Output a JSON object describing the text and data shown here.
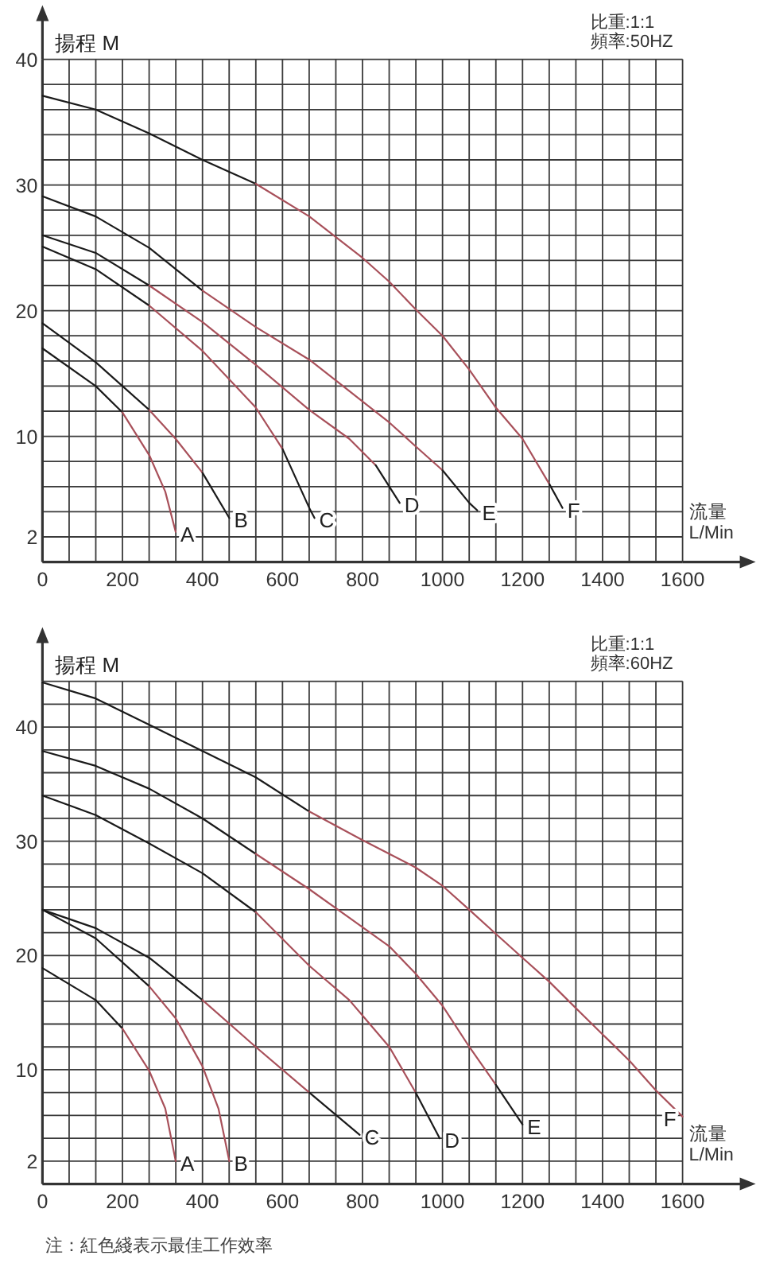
{
  "chart_data": [
    {
      "type": "line",
      "xlabel": "流量\nL/Min",
      "ylabel": "揚程 M",
      "annotations": [
        "比重:1:1",
        "頻率:50HZ"
      ],
      "grid": true,
      "xlim": [
        0,
        1600
      ],
      "ylim": [
        0,
        40
      ],
      "xticks": [
        0,
        {
          "value": 66.667,
          "label": null
        },
        {
          "value": 133.333,
          "label": null
        },
        200,
        {
          "value": 266.667,
          "label": null
        },
        {
          "value": 333.333,
          "label": null
        },
        400,
        {
          "value": 466.667,
          "label": null
        },
        {
          "value": 533.333,
          "label": null
        },
        600,
        {
          "value": 666.667,
          "label": null
        },
        {
          "value": 733.333,
          "label": null
        },
        800,
        {
          "value": 866.667,
          "label": null
        },
        {
          "value": 933.333,
          "label": null
        },
        1000,
        {
          "value": 1066.667,
          "label": null
        },
        {
          "value": 1133.333,
          "label": null
        },
        1200,
        {
          "value": 1266.667,
          "label": null
        },
        {
          "value": 1333.333,
          "label": null
        },
        1400,
        {
          "value": 1466.667,
          "label": null
        },
        {
          "value": 1533.333,
          "label": null
        },
        1600
      ],
      "yticks": [
        {
          "value": 0,
          "label": null
        },
        2,
        {
          "value": 4,
          "label": null
        },
        {
          "value": 6,
          "label": null
        },
        {
          "value": 8,
          "label": null
        },
        10,
        {
          "value": 12,
          "label": null
        },
        {
          "value": 14,
          "label": null
        },
        {
          "value": 16,
          "label": null
        },
        {
          "value": 18,
          "label": null
        },
        20,
        {
          "value": 22,
          "label": null
        },
        {
          "value": 24,
          "label": null
        },
        {
          "value": 26,
          "label": null
        },
        {
          "value": 28,
          "label": null
        },
        30,
        {
          "value": 32,
          "label": null
        },
        {
          "value": 34,
          "label": null
        },
        {
          "value": 36,
          "label": null
        },
        {
          "value": 38,
          "label": null
        },
        40
      ],
      "series": [
        {
          "color": "#1a1a1a",
          "x": [
            0,
            133,
            200
          ],
          "values": [
            17.0,
            14.0,
            11.9
          ]
        },
        {
          "name": "A",
          "color": "#a8505a",
          "x": [
            200,
            267,
            307,
            333
          ],
          "values": [
            11.9,
            8.5,
            5.6,
            2.4
          ]
        },
        {
          "color": "#1a1a1a",
          "x": [
            0,
            133,
            267
          ],
          "values": [
            19.0,
            15.9,
            12.1
          ]
        },
        {
          "color": "#a8505a",
          "x": [
            267,
            333,
            400
          ],
          "values": [
            12.1,
            9.8,
            7.1
          ]
        },
        {
          "name": "B",
          "color": "#1a1a1a",
          "x": [
            400,
            467
          ],
          "values": [
            7.1,
            3.5
          ]
        },
        {
          "color": "#1a1a1a",
          "x": [
            0,
            133,
            267
          ],
          "values": [
            25.1,
            23.3,
            20.4
          ]
        },
        {
          "color": "#a8505a",
          "x": [
            267,
            400,
            533,
            600
          ],
          "values": [
            20.4,
            16.8,
            12.3,
            9.0
          ]
        },
        {
          "name": "C",
          "color": "#1a1a1a",
          "x": [
            600,
            667,
            680
          ],
          "values": [
            9.0,
            4.3,
            3.5
          ]
        },
        {
          "color": "#1a1a1a",
          "x": [
            0,
            133,
            267
          ],
          "values": [
            26.0,
            24.6,
            22.0
          ]
        },
        {
          "color": "#a8505a",
          "x": [
            267,
            400,
            533,
            667,
            767,
            833
          ],
          "values": [
            22.0,
            19.1,
            15.7,
            12.1,
            9.8,
            7.7
          ]
        },
        {
          "name": "D",
          "color": "#1a1a1a",
          "x": [
            833,
            893
          ],
          "values": [
            7.7,
            4.7
          ]
        },
        {
          "color": "#1a1a1a",
          "x": [
            0,
            133,
            267,
            400
          ],
          "values": [
            29.1,
            27.5,
            25.0,
            21.6
          ]
        },
        {
          "color": "#a8505a",
          "x": [
            400,
            533,
            667,
            767,
            867,
            933,
            1000
          ],
          "values": [
            21.6,
            18.7,
            16.1,
            13.6,
            11.1,
            9.2,
            7.3
          ]
        },
        {
          "name": "E",
          "color": "#1a1a1a",
          "x": [
            1000,
            1067,
            1087
          ],
          "values": [
            7.3,
            4.7,
            4.1
          ]
        },
        {
          "color": "#1a1a1a",
          "x": [
            0,
            133,
            267,
            400,
            533
          ],
          "values": [
            37.1,
            36.0,
            34.1,
            32.0,
            30.1
          ]
        },
        {
          "color": "#a8505a",
          "x": [
            533,
            667,
            800,
            867,
            933,
            1000,
            1067,
            1133,
            1200,
            1267
          ],
          "values": [
            30.1,
            27.5,
            24.2,
            22.3,
            20.1,
            18.0,
            15.3,
            12.3,
            9.8,
            6.2
          ]
        },
        {
          "name": "F",
          "color": "#1a1a1a",
          "x": [
            1267,
            1300
          ],
          "values": [
            6.2,
            4.3
          ]
        }
      ]
    },
    {
      "type": "line",
      "xlabel": "流量\nL/Min",
      "ylabel": "揚程 M",
      "annotations": [
        "比重:1:1",
        "頻率:60HZ",
        "注：紅色綫表示最佳工作效率"
      ],
      "grid": true,
      "xlim": [
        0,
        1600
      ],
      "ylim": [
        0,
        44
      ],
      "xticks": [
        0,
        {
          "value": 66.667,
          "label": null
        },
        {
          "value": 133.333,
          "label": null
        },
        200,
        {
          "value": 266.667,
          "label": null
        },
        {
          "value": 333.333,
          "label": null
        },
        400,
        {
          "value": 466.667,
          "label": null
        },
        {
          "value": 533.333,
          "label": null
        },
        600,
        {
          "value": 666.667,
          "label": null
        },
        {
          "value": 733.333,
          "label": null
        },
        800,
        {
          "value": 866.667,
          "label": null
        },
        {
          "value": 933.333,
          "label": null
        },
        1000,
        {
          "value": 1066.667,
          "label": null
        },
        {
          "value": 1133.333,
          "label": null
        },
        1200,
        {
          "value": 1266.667,
          "label": null
        },
        {
          "value": 1333.333,
          "label": null
        },
        1400,
        {
          "value": 1466.667,
          "label": null
        },
        {
          "value": 1533.333,
          "label": null
        },
        1600
      ],
      "yticks": [
        {
          "value": 0,
          "label": null
        },
        2,
        {
          "value": 4,
          "label": null
        },
        {
          "value": 6,
          "label": null
        },
        {
          "value": 8,
          "label": null
        },
        10,
        {
          "value": 12,
          "label": null
        },
        {
          "value": 14,
          "label": null
        },
        {
          "value": 16,
          "label": null
        },
        {
          "value": 18,
          "label": null
        },
        20,
        {
          "value": 22,
          "label": null
        },
        {
          "value": 24,
          "label": null
        },
        {
          "value": 26,
          "label": null
        },
        {
          "value": 28,
          "label": null
        },
        30,
        {
          "value": 32,
          "label": null
        },
        {
          "value": 34,
          "label": null
        },
        {
          "value": 36,
          "label": null
        },
        {
          "value": 38,
          "label": null
        },
        40,
        {
          "value": 42,
          "label": null
        },
        {
          "value": 44,
          "label": null
        }
      ],
      "series": [
        {
          "color": "#1a1a1a",
          "x": [
            0,
            133,
            200
          ],
          "values": [
            18.9,
            16.1,
            13.6
          ]
        },
        {
          "name": "A",
          "color": "#a8505a",
          "x": [
            200,
            267,
            307,
            333
          ],
          "values": [
            13.6,
            9.9,
            6.6,
            2.0
          ]
        },
        {
          "color": "#1a1a1a",
          "x": [
            0,
            133,
            267
          ],
          "values": [
            24.0,
            21.5,
            17.3
          ]
        },
        {
          "name": "B",
          "color": "#a8505a",
          "x": [
            267,
            333,
            400,
            440,
            467
          ],
          "values": [
            17.3,
            14.5,
            10.3,
            6.6,
            2.0
          ]
        },
        {
          "color": "#1a1a1a",
          "x": [
            0,
            133,
            267,
            400
          ],
          "values": [
            24.0,
            22.4,
            19.8,
            16.1
          ]
        },
        {
          "color": "#a8505a",
          "x": [
            400,
            533,
            667
          ],
          "values": [
            16.1,
            12.0,
            8.0
          ]
        },
        {
          "name": "C",
          "color": "#1a1a1a",
          "x": [
            667,
            793
          ],
          "values": [
            8.0,
            4.3
          ]
        },
        {
          "color": "#1a1a1a",
          "x": [
            0,
            133,
            267,
            400,
            533
          ],
          "values": [
            34.0,
            32.3,
            29.8,
            27.2,
            23.8
          ]
        },
        {
          "color": "#a8505a",
          "x": [
            533,
            667,
            767,
            867,
            933
          ],
          "values": [
            23.8,
            19.1,
            16.1,
            12.0,
            8.0
          ]
        },
        {
          "name": "D",
          "color": "#1a1a1a",
          "x": [
            933,
            993
          ],
          "values": [
            8.0,
            4.0
          ]
        },
        {
          "color": "#1a1a1a",
          "x": [
            0,
            133,
            267,
            400,
            533
          ],
          "values": [
            37.9,
            36.6,
            34.6,
            32.0,
            28.9
          ]
        },
        {
          "color": "#a8505a",
          "x": [
            533,
            667,
            767,
            867,
            933,
            1000,
            1067,
            1133
          ],
          "values": [
            28.9,
            25.8,
            23.3,
            20.8,
            18.4,
            15.6,
            12.0,
            8.7
          ]
        },
        {
          "name": "E",
          "color": "#1a1a1a",
          "x": [
            1133,
            1200
          ],
          "values": [
            8.7,
            5.2
          ]
        },
        {
          "color": "#1a1a1a",
          "x": [
            0,
            133,
            267,
            400,
            533,
            667
          ],
          "values": [
            43.9,
            42.5,
            40.2,
            37.9,
            35.6,
            32.6
          ]
        },
        {
          "name": "F",
          "color": "#a8505a",
          "x": [
            667,
            800,
            933,
            1000,
            1067,
            1133,
            1200,
            1267,
            1333,
            1400,
            1467,
            1533,
            1600
          ],
          "values": [
            32.6,
            30.1,
            27.7,
            26.1,
            24.0,
            21.9,
            19.8,
            17.7,
            15.4,
            13.1,
            10.8,
            8.2,
            5.9
          ]
        }
      ]
    }
  ]
}
